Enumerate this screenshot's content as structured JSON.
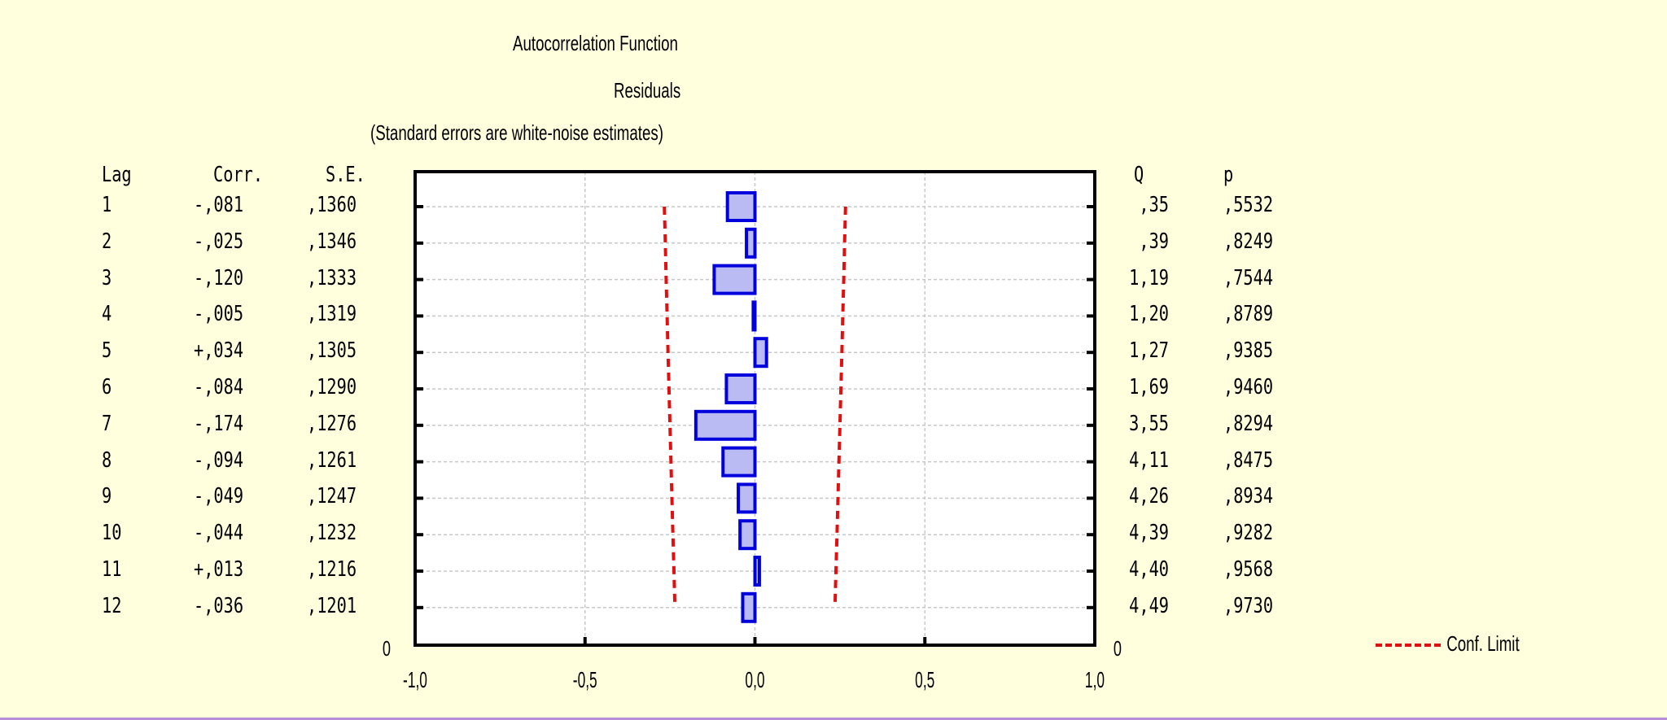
{
  "chart_data": {
    "type": "bar",
    "title": "Autocorrelation Function",
    "subtitle": "Residuals",
    "note": "(Standard errors are white-noise estimates)",
    "columns": [
      "Lag",
      "Corr.",
      "S.E.",
      "Q",
      "p"
    ],
    "lags": [
      "1",
      "2",
      "3",
      "4",
      "5",
      "6",
      "7",
      "8",
      "9",
      "10",
      "11",
      "12"
    ],
    "corr_labels": [
      "-,081",
      "-,025",
      "-,120",
      "-,005",
      "+,034",
      "-,084",
      "-,174",
      "-,094",
      "-,049",
      "-,044",
      "+,013",
      "-,036"
    ],
    "se_labels": [
      ",1360",
      ",1346",
      ",1333",
      ",1319",
      ",1305",
      ",1290",
      ",1276",
      ",1261",
      ",1247",
      ",1232",
      ",1216",
      ",1201"
    ],
    "q_labels": [
      ",35",
      ",39",
      "1,19",
      "1,20",
      "1,27",
      "1,69",
      "3,55",
      "4,11",
      "4,26",
      "4,39",
      "4,40",
      "4,49"
    ],
    "p_labels": [
      ",5532",
      ",8249",
      ",7544",
      ",8789",
      ",9385",
      ",9460",
      ",8294",
      ",8475",
      ",8934",
      ",9282",
      ",9568",
      ",9730"
    ],
    "values": [
      -0.081,
      -0.025,
      -0.12,
      -0.005,
      0.034,
      -0.084,
      -0.174,
      -0.094,
      -0.049,
      -0.044,
      0.013,
      -0.036
    ],
    "standard_errors": [
      0.136,
      0.1346,
      0.1333,
      0.1319,
      0.1305,
      0.129,
      0.1276,
      0.1261,
      0.1247,
      0.1232,
      0.1216,
      0.1201
    ],
    "conf_limit_multiplier": 1.96,
    "xlim": [
      -1.0,
      1.0
    ],
    "x_ticks": [
      -1.0,
      -0.5,
      0.0,
      0.5,
      1.0
    ],
    "x_tick_labels": [
      "-1,0",
      "-0,5",
      "0,0",
      "0,5",
      "1,0"
    ],
    "y_axis_zero_label_left": "0",
    "y_axis_zero_label_right": "0",
    "legend": {
      "label": "Conf. Limit",
      "position": "bottom-right"
    },
    "colors": {
      "bar_fill": "#bbbbf4",
      "bar_stroke": "#0000dd",
      "conf_limit": "#e01010",
      "background": "#ffffdd",
      "plot_background": "#ffffff",
      "grid": "#c8c8c8"
    },
    "grid": true
  }
}
